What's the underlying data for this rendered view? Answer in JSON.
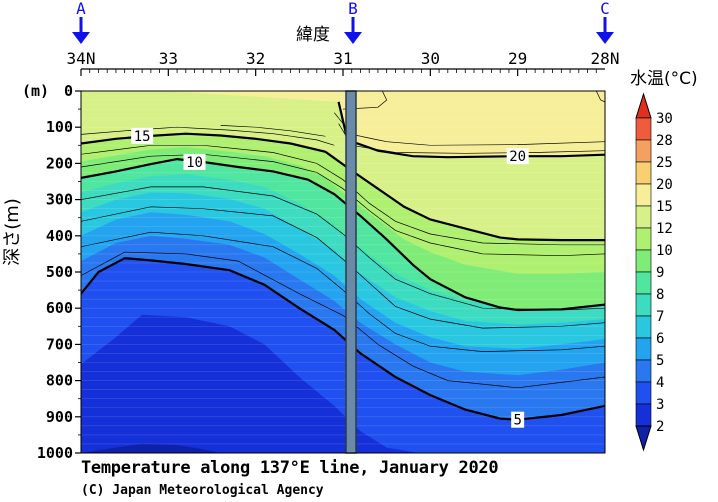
{
  "chart_data": {
    "type": "heatmap",
    "title": "Temperature along 137°E line, January 2020",
    "credit": "(C) Japan Meteorological Agency",
    "xlabel": "緯度",
    "ylabel": "深さ(m)",
    "y_unit": "(m)",
    "colorbar_label": "水温(°C)",
    "xlim": [
      34,
      28
    ],
    "ylim": [
      0,
      1000
    ],
    "x_ticks": [
      {
        "value": 34,
        "label": "34N"
      },
      {
        "value": 33,
        "label": "33"
      },
      {
        "value": 32,
        "label": "32"
      },
      {
        "value": 31,
        "label": "31"
      },
      {
        "value": 30,
        "label": "30"
      },
      {
        "value": 29,
        "label": "29"
      },
      {
        "value": 28,
        "label": "28N"
      }
    ],
    "y_ticks": [
      0,
      100,
      200,
      300,
      400,
      500,
      600,
      700,
      800,
      900,
      1000
    ],
    "stations": [
      {
        "label": "A",
        "lat": 34.0
      },
      {
        "label": "B",
        "lat": 31.0
      },
      {
        "label": "C",
        "lat": 28.0
      }
    ],
    "colorbar_levels": [
      2,
      3,
      4,
      5,
      6,
      7,
      8,
      9,
      10,
      12,
      15,
      20,
      25,
      28,
      30
    ],
    "colorbar_colors": [
      "#1020a8",
      "#1530d8",
      "#2050f0",
      "#2a78f0",
      "#24a4f0",
      "#2ac8e0",
      "#3ddcc0",
      "#50e6a0",
      "#80ec78",
      "#b0f070",
      "#d8f088",
      "#f6ee98",
      "#f8d070",
      "#f4a060",
      "#ee5c3c",
      "#e03020"
    ],
    "isotherms": [
      {
        "temp": 20,
        "label_lat": 29.0,
        "points": [
          [
            31.05,
            30
          ],
          [
            30.95,
            135
          ],
          [
            30.6,
            165
          ],
          [
            30.2,
            180
          ],
          [
            29.8,
            183
          ],
          [
            29.0,
            180
          ],
          [
            28.5,
            180
          ],
          [
            28.0,
            176
          ]
        ]
      },
      {
        "temp": 15,
        "label_lat": 33.3,
        "points": [
          [
            34.0,
            145
          ],
          [
            33.6,
            132
          ],
          [
            33.2,
            124
          ],
          [
            32.8,
            118
          ],
          [
            32.4,
            123
          ],
          [
            32.0,
            132
          ],
          [
            31.6,
            145
          ],
          [
            31.2,
            168
          ],
          [
            30.9,
            220
          ],
          [
            30.6,
            270
          ],
          [
            30.3,
            320
          ],
          [
            30.0,
            355
          ],
          [
            29.6,
            380
          ],
          [
            29.2,
            405
          ],
          [
            29.0,
            410
          ],
          [
            28.5,
            412
          ],
          [
            28.0,
            412
          ]
        ]
      },
      {
        "temp": 10,
        "label_lat": 32.7,
        "points": [
          [
            34.0,
            240
          ],
          [
            33.6,
            222
          ],
          [
            33.2,
            202
          ],
          [
            32.9,
            188
          ],
          [
            32.6,
            196
          ],
          [
            32.2,
            210
          ],
          [
            31.8,
            222
          ],
          [
            31.4,
            245
          ],
          [
            31.1,
            285
          ],
          [
            30.8,
            345
          ],
          [
            30.5,
            410
          ],
          [
            30.2,
            480
          ],
          [
            30.0,
            520
          ],
          [
            29.6,
            570
          ],
          [
            29.2,
            598
          ],
          [
            29.0,
            605
          ],
          [
            28.5,
            603
          ],
          [
            28.0,
            590
          ]
        ]
      },
      {
        "temp": 5,
        "label_lat": 29.0,
        "points": [
          [
            34.0,
            560
          ],
          [
            33.8,
            500
          ],
          [
            33.5,
            462
          ],
          [
            33.2,
            468
          ],
          [
            32.8,
            478
          ],
          [
            32.3,
            495
          ],
          [
            31.9,
            535
          ],
          [
            31.5,
            600
          ],
          [
            31.1,
            660
          ],
          [
            30.8,
            725
          ],
          [
            30.4,
            790
          ],
          [
            30.0,
            840
          ],
          [
            29.6,
            880
          ],
          [
            29.2,
            905
          ],
          [
            29.0,
            908
          ],
          [
            28.5,
            895
          ],
          [
            28.0,
            870
          ]
        ]
      }
    ]
  }
}
